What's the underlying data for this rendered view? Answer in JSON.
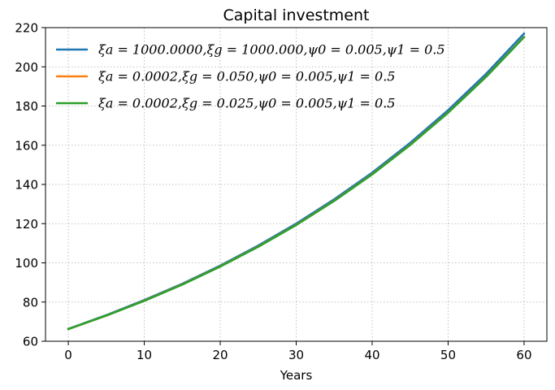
{
  "chart_data": {
    "type": "line",
    "title": "Capital investment",
    "xlabel": "Years",
    "ylabel": "",
    "xlim": [
      -3,
      63
    ],
    "ylim": [
      60,
      220
    ],
    "xticks": [
      0,
      10,
      20,
      30,
      40,
      50,
      60
    ],
    "yticks": [
      60,
      80,
      100,
      120,
      140,
      160,
      180,
      200,
      220
    ],
    "grid": true,
    "legend_position": "upper-left",
    "x": [
      0,
      5,
      10,
      15,
      20,
      25,
      30,
      35,
      40,
      45,
      50,
      55,
      60
    ],
    "series": [
      {
        "name": "ξa = 1000.0000,ξg = 1000.000,ψ0 = 0.005,ψ1 = 0.5",
        "color": "#1f77b4",
        "values": [
          66.3,
          73.3,
          81.0,
          89.3,
          98.6,
          108.8,
          120.0,
          132.4,
          146.0,
          161.2,
          177.9,
          196.4,
          217.0
        ]
      },
      {
        "name": "ξa = 0.0002,ξg = 0.050,ψ0 = 0.005,ψ1 = 0.5",
        "color": "#ff7f0e",
        "values": [
          66.2,
          73.1,
          80.7,
          89.0,
          98.2,
          108.3,
          119.4,
          131.7,
          145.2,
          160.2,
          176.7,
          195.0,
          215.3
        ]
      },
      {
        "name": "ξa = 0.0002,ξg = 0.025,ψ0 = 0.005,ψ1 = 0.5",
        "color": "#2ca02c",
        "values": [
          66.2,
          73.1,
          80.6,
          88.9,
          98.1,
          108.2,
          119.3,
          131.6,
          145.1,
          160.1,
          176.6,
          194.9,
          215.2
        ]
      }
    ]
  }
}
